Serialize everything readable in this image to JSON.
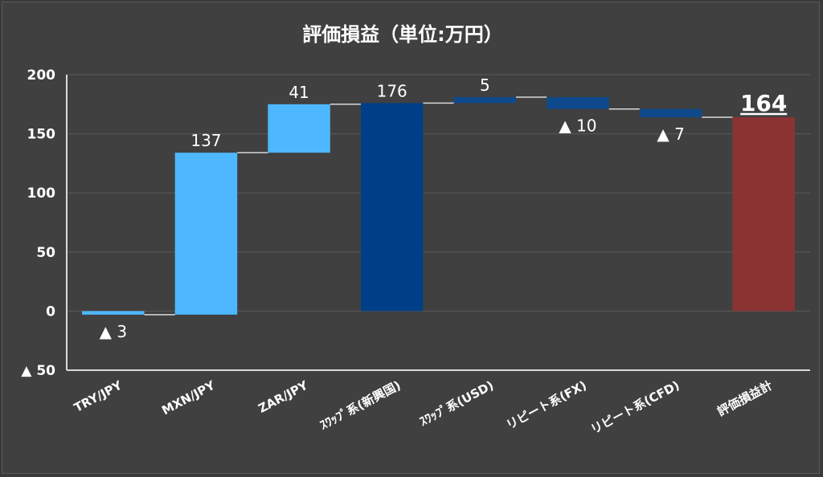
{
  "chart_data": {
    "type": "bar",
    "subtype": "waterfall",
    "title": "評価損益（単位:万円）",
    "categories": [
      "TRY/JPY",
      "MXN/JPY",
      "ZAR/JPY",
      "ｽﾜｯﾌﾟ系(新興国)",
      "ｽﾜｯﾌﾟ系(USD)",
      "リピート系(FX)",
      "リピート系(CFD)",
      "評価損益計"
    ],
    "values": [
      -3,
      137,
      41,
      176,
      5,
      -10,
      -7,
      164
    ],
    "kinds": [
      "delta",
      "delta",
      "delta",
      "total",
      "delta",
      "delta",
      "delta",
      "total"
    ],
    "data_labels": [
      "▲ 3",
      "137",
      "41",
      "176",
      "5",
      "▲ 10",
      "▲ 7",
      "164"
    ],
    "ylim": [
      -50,
      200
    ],
    "yticks": [
      -50,
      0,
      50,
      100,
      150,
      200
    ],
    "ytick_labels": [
      "▲ 50",
      "0",
      "50",
      "100",
      "150",
      "200"
    ],
    "grid": true,
    "colors": {
      "background": "#404040",
      "gridline": "#5a5a5a",
      "axis": "#d9d9d9",
      "em_delta": "#4db8ff",
      "subtotal": "#003f87",
      "usd_delta": "#0f4a8c",
      "total": "#8b3232",
      "connector": "#d9d9d9"
    },
    "bar_colors": [
      "#4db8ff",
      "#4db8ff",
      "#4db8ff",
      "#003f87",
      "#0f4a8c",
      "#0f4a8c",
      "#0f4a8c",
      "#8b3232"
    ]
  }
}
